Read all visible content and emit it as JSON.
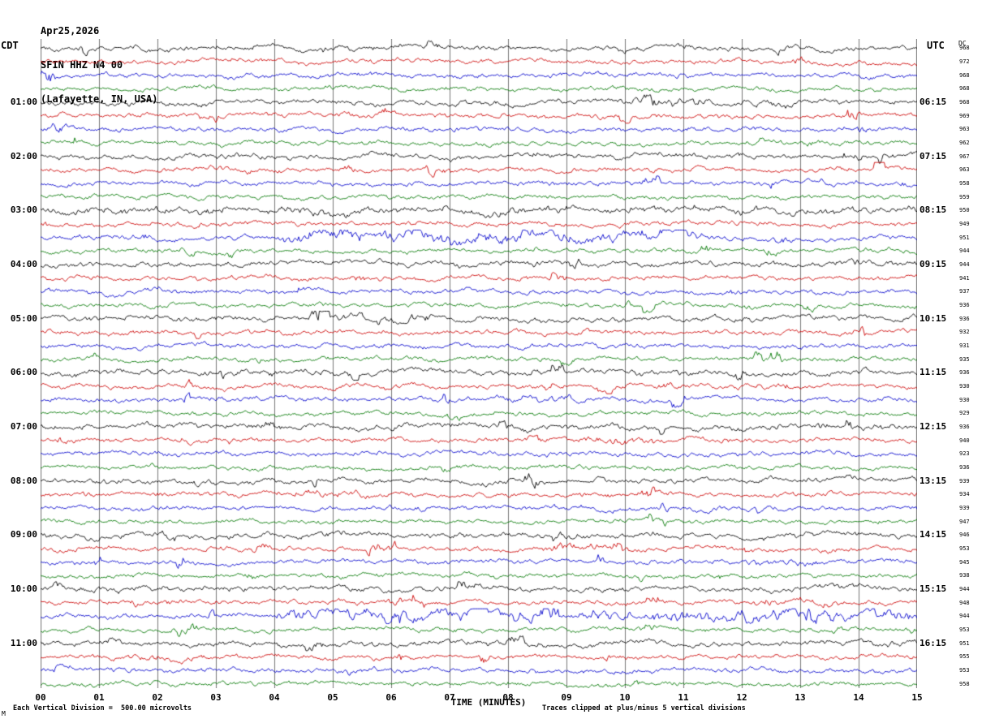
{
  "header": {
    "date": "Apr25,2026",
    "station": "SFIN HHZ N4 00",
    "location": "(Lafayette, IN, USA)",
    "left_timezone": "CDT",
    "right_timezone": "UTC",
    "dc_column_label": "DC"
  },
  "footer": {
    "x_axis_title": "TIME (MINUTES)",
    "scale_note": "Each Vertical Division =  500.00 microvolts",
    "clip_note": "Traces clipped at plus/minus 5 vertical divisions",
    "corner_mark": "M"
  },
  "chart_data": {
    "type": "line",
    "title": "Helicorder record SFIN HHZ N4 00 (Lafayette, IN, USA) Apr25,2026",
    "xlabel": "TIME (MINUTES)",
    "x_range_minutes": [
      0,
      15
    ],
    "x_ticks": [
      "00",
      "01",
      "02",
      "03",
      "04",
      "05",
      "06",
      "07",
      "08",
      "09",
      "10",
      "11",
      "12",
      "13",
      "14",
      "15"
    ],
    "minutes_per_row": 15,
    "left_axis": "CDT start time of each row",
    "right_axis": "UTC end time of each row",
    "trace_colors_cycle": [
      "#000000",
      "#cc0000",
      "#0000cc",
      "#007700"
    ],
    "grid_color": "#777777",
    "clip_divisions": 5,
    "microvolts_per_division": "500.00",
    "rows": [
      {
        "cdt": "",
        "utc": "",
        "dc": "968",
        "amp": 1.0
      },
      {
        "cdt": "",
        "utc": "",
        "dc": "972",
        "amp": 0.95
      },
      {
        "cdt": "",
        "utc": "",
        "dc": "968",
        "amp": 0.95
      },
      {
        "cdt": "",
        "utc": "",
        "dc": "968",
        "amp": 0.9
      },
      {
        "cdt": "01:00",
        "utc": "06:15",
        "dc": "968",
        "amp": 1.05
      },
      {
        "cdt": "",
        "utc": "",
        "dc": "969",
        "amp": 0.95
      },
      {
        "cdt": "",
        "utc": "",
        "dc": "963",
        "amp": 0.95
      },
      {
        "cdt": "",
        "utc": "",
        "dc": "962",
        "amp": 0.9
      },
      {
        "cdt": "02:00",
        "utc": "07:15",
        "dc": "967",
        "amp": 1.05
      },
      {
        "cdt": "",
        "utc": "",
        "dc": "963",
        "amp": 0.95
      },
      {
        "cdt": "",
        "utc": "",
        "dc": "958",
        "amp": 0.95
      },
      {
        "cdt": "",
        "utc": "",
        "dc": "959",
        "amp": 0.9
      },
      {
        "cdt": "03:00",
        "utc": "08:15",
        "dc": "950",
        "amp": 1.25
      },
      {
        "cdt": "",
        "utc": "",
        "dc": "949",
        "amp": 0.95
      },
      {
        "cdt": "",
        "utc": "",
        "dc": "951",
        "amp": 0.95
      },
      {
        "cdt": "",
        "utc": "",
        "dc": "944",
        "amp": 0.9
      },
      {
        "cdt": "04:00",
        "utc": "09:15",
        "dc": "944",
        "amp": 1.1
      },
      {
        "cdt": "",
        "utc": "",
        "dc": "941",
        "amp": 0.95
      },
      {
        "cdt": "",
        "utc": "",
        "dc": "937",
        "amp": 0.95
      },
      {
        "cdt": "",
        "utc": "",
        "dc": "936",
        "amp": 0.9
      },
      {
        "cdt": "05:00",
        "utc": "10:15",
        "dc": "936",
        "amp": 1.05
      },
      {
        "cdt": "",
        "utc": "",
        "dc": "932",
        "amp": 0.95
      },
      {
        "cdt": "",
        "utc": "",
        "dc": "931",
        "amp": 0.95
      },
      {
        "cdt": "",
        "utc": "",
        "dc": "935",
        "amp": 0.9
      },
      {
        "cdt": "06:00",
        "utc": "11:15",
        "dc": "936",
        "amp": 1.15
      },
      {
        "cdt": "",
        "utc": "",
        "dc": "930",
        "amp": 0.95
      },
      {
        "cdt": "",
        "utc": "",
        "dc": "930",
        "amp": 0.95
      },
      {
        "cdt": "",
        "utc": "",
        "dc": "929",
        "amp": 0.9
      },
      {
        "cdt": "07:00",
        "utc": "12:15",
        "dc": "936",
        "amp": 1.1
      },
      {
        "cdt": "",
        "utc": "",
        "dc": "940",
        "amp": 0.95
      },
      {
        "cdt": "",
        "utc": "",
        "dc": "923",
        "amp": 0.95
      },
      {
        "cdt": "",
        "utc": "",
        "dc": "936",
        "amp": 0.9
      },
      {
        "cdt": "08:00",
        "utc": "13:15",
        "dc": "939",
        "amp": 1.05
      },
      {
        "cdt": "",
        "utc": "",
        "dc": "934",
        "amp": 0.95
      },
      {
        "cdt": "",
        "utc": "",
        "dc": "939",
        "amp": 0.95
      },
      {
        "cdt": "",
        "utc": "",
        "dc": "947",
        "amp": 0.9
      },
      {
        "cdt": "09:00",
        "utc": "14:15",
        "dc": "946",
        "amp": 1.15
      },
      {
        "cdt": "",
        "utc": "",
        "dc": "953",
        "amp": 0.95
      },
      {
        "cdt": "",
        "utc": "",
        "dc": "945",
        "amp": 0.95
      },
      {
        "cdt": "",
        "utc": "",
        "dc": "938",
        "amp": 0.9
      },
      {
        "cdt": "10:00",
        "utc": "15:15",
        "dc": "944",
        "amp": 1.1
      },
      {
        "cdt": "",
        "utc": "",
        "dc": "948",
        "amp": 0.95
      },
      {
        "cdt": "",
        "utc": "",
        "dc": "944",
        "amp": 1.0
      },
      {
        "cdt": "",
        "utc": "",
        "dc": "953",
        "amp": 0.9
      },
      {
        "cdt": "11:00",
        "utc": "16:15",
        "dc": "951",
        "amp": 1.1
      },
      {
        "cdt": "",
        "utc": "",
        "dc": "955",
        "amp": 0.95
      },
      {
        "cdt": "",
        "utc": "",
        "dc": "953",
        "amp": 0.95
      },
      {
        "cdt": "",
        "utc": "",
        "dc": "958",
        "amp": 0.9
      }
    ],
    "bursts": [
      [
        4,
        10.2,
        11.3,
        2.0
      ],
      [
        12,
        0.0,
        15.0,
        1.2
      ],
      [
        14,
        4.6,
        11.2,
        2.7
      ],
      [
        20,
        4.7,
        6.6,
        1.6
      ],
      [
        26,
        7.9,
        9.1,
        1.5
      ],
      [
        29,
        9.4,
        10.4,
        1.7
      ],
      [
        33,
        4.4,
        5.4,
        1.6
      ],
      [
        37,
        8.8,
        10.0,
        1.8
      ],
      [
        38,
        12.2,
        13.2,
        1.7
      ],
      [
        41,
        12.4,
        13.5,
        1.6
      ],
      [
        42,
        4.2,
        15.0,
        2.3
      ],
      [
        45,
        1.4,
        2.5,
        1.5
      ]
    ]
  }
}
